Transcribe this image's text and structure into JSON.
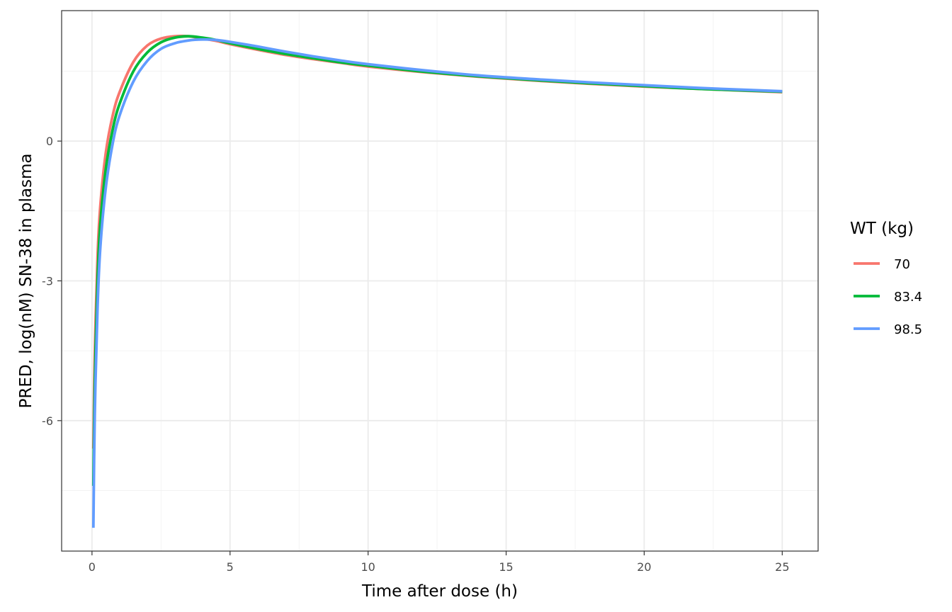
{
  "chart_data": {
    "type": "line",
    "title": "",
    "xlabel": "Time after dose (h)",
    "ylabel": "PRED, log(nM) SN-38 in plasma",
    "xlim": [
      -1.1,
      26.3
    ],
    "ylim": [
      -8.8,
      2.8
    ],
    "x_ticks": [
      0,
      5,
      10,
      15,
      20,
      25
    ],
    "x_tick_labels": [
      "0",
      "5",
      "10",
      "15",
      "20",
      "25"
    ],
    "y_ticks": [
      -6,
      -3,
      0
    ],
    "y_tick_labels": [
      "-6",
      "-3",
      "0"
    ],
    "grid": true,
    "legend": {
      "title": "WT (kg)",
      "position": "right"
    },
    "series": [
      {
        "name": "70",
        "color": "#F8766D",
        "points": [
          [
            0.05,
            -6.6
          ],
          [
            0.1,
            -4.6
          ],
          [
            0.2,
            -2.5
          ],
          [
            0.3,
            -1.4
          ],
          [
            0.5,
            -0.25
          ],
          [
            0.75,
            0.55
          ],
          [
            1.0,
            1.05
          ],
          [
            1.5,
            1.7
          ],
          [
            2.0,
            2.05
          ],
          [
            2.5,
            2.2
          ],
          [
            3.0,
            2.25
          ],
          [
            3.5,
            2.25
          ],
          [
            4.0,
            2.2
          ],
          [
            4.5,
            2.15
          ],
          [
            5.0,
            2.08
          ],
          [
            6.0,
            1.96
          ],
          [
            7.0,
            1.85
          ],
          [
            8.0,
            1.76
          ],
          [
            9.0,
            1.68
          ],
          [
            10.0,
            1.6
          ],
          [
            12.0,
            1.48
          ],
          [
            14.0,
            1.38
          ],
          [
            16.0,
            1.3
          ],
          [
            18.0,
            1.23
          ],
          [
            20.0,
            1.17
          ],
          [
            22.0,
            1.12
          ],
          [
            25.0,
            1.05
          ]
        ]
      },
      {
        "name": "83.4",
        "color": "#00BA38",
        "points": [
          [
            0.05,
            -7.4
          ],
          [
            0.1,
            -5.2
          ],
          [
            0.2,
            -3.0
          ],
          [
            0.3,
            -1.8
          ],
          [
            0.5,
            -0.6
          ],
          [
            0.75,
            0.25
          ],
          [
            1.0,
            0.8
          ],
          [
            1.5,
            1.5
          ],
          [
            2.0,
            1.9
          ],
          [
            2.5,
            2.12
          ],
          [
            3.0,
            2.22
          ],
          [
            3.5,
            2.25
          ],
          [
            4.0,
            2.22
          ],
          [
            4.5,
            2.17
          ],
          [
            5.0,
            2.1
          ],
          [
            6.0,
            1.98
          ],
          [
            7.0,
            1.87
          ],
          [
            8.0,
            1.78
          ],
          [
            9.0,
            1.69
          ],
          [
            10.0,
            1.62
          ],
          [
            12.0,
            1.49
          ],
          [
            14.0,
            1.39
          ],
          [
            16.0,
            1.31
          ],
          [
            18.0,
            1.24
          ],
          [
            20.0,
            1.18
          ],
          [
            22.0,
            1.12
          ],
          [
            25.0,
            1.06
          ]
        ]
      },
      {
        "name": "98.5",
        "color": "#619CFF",
        "points": [
          [
            0.05,
            -8.3
          ],
          [
            0.1,
            -5.9
          ],
          [
            0.2,
            -3.6
          ],
          [
            0.3,
            -2.3
          ],
          [
            0.5,
            -1.0
          ],
          [
            0.75,
            -0.05
          ],
          [
            1.0,
            0.55
          ],
          [
            1.5,
            1.28
          ],
          [
            2.0,
            1.72
          ],
          [
            2.5,
            1.98
          ],
          [
            3.0,
            2.1
          ],
          [
            3.5,
            2.16
          ],
          [
            4.0,
            2.18
          ],
          [
            4.5,
            2.17
          ],
          [
            5.0,
            2.13
          ],
          [
            6.0,
            2.03
          ],
          [
            7.0,
            1.92
          ],
          [
            8.0,
            1.82
          ],
          [
            9.0,
            1.73
          ],
          [
            10.0,
            1.65
          ],
          [
            12.0,
            1.52
          ],
          [
            14.0,
            1.41
          ],
          [
            16.0,
            1.33
          ],
          [
            18.0,
            1.26
          ],
          [
            20.0,
            1.2
          ],
          [
            22.0,
            1.14
          ],
          [
            25.0,
            1.07
          ]
        ]
      }
    ]
  }
}
